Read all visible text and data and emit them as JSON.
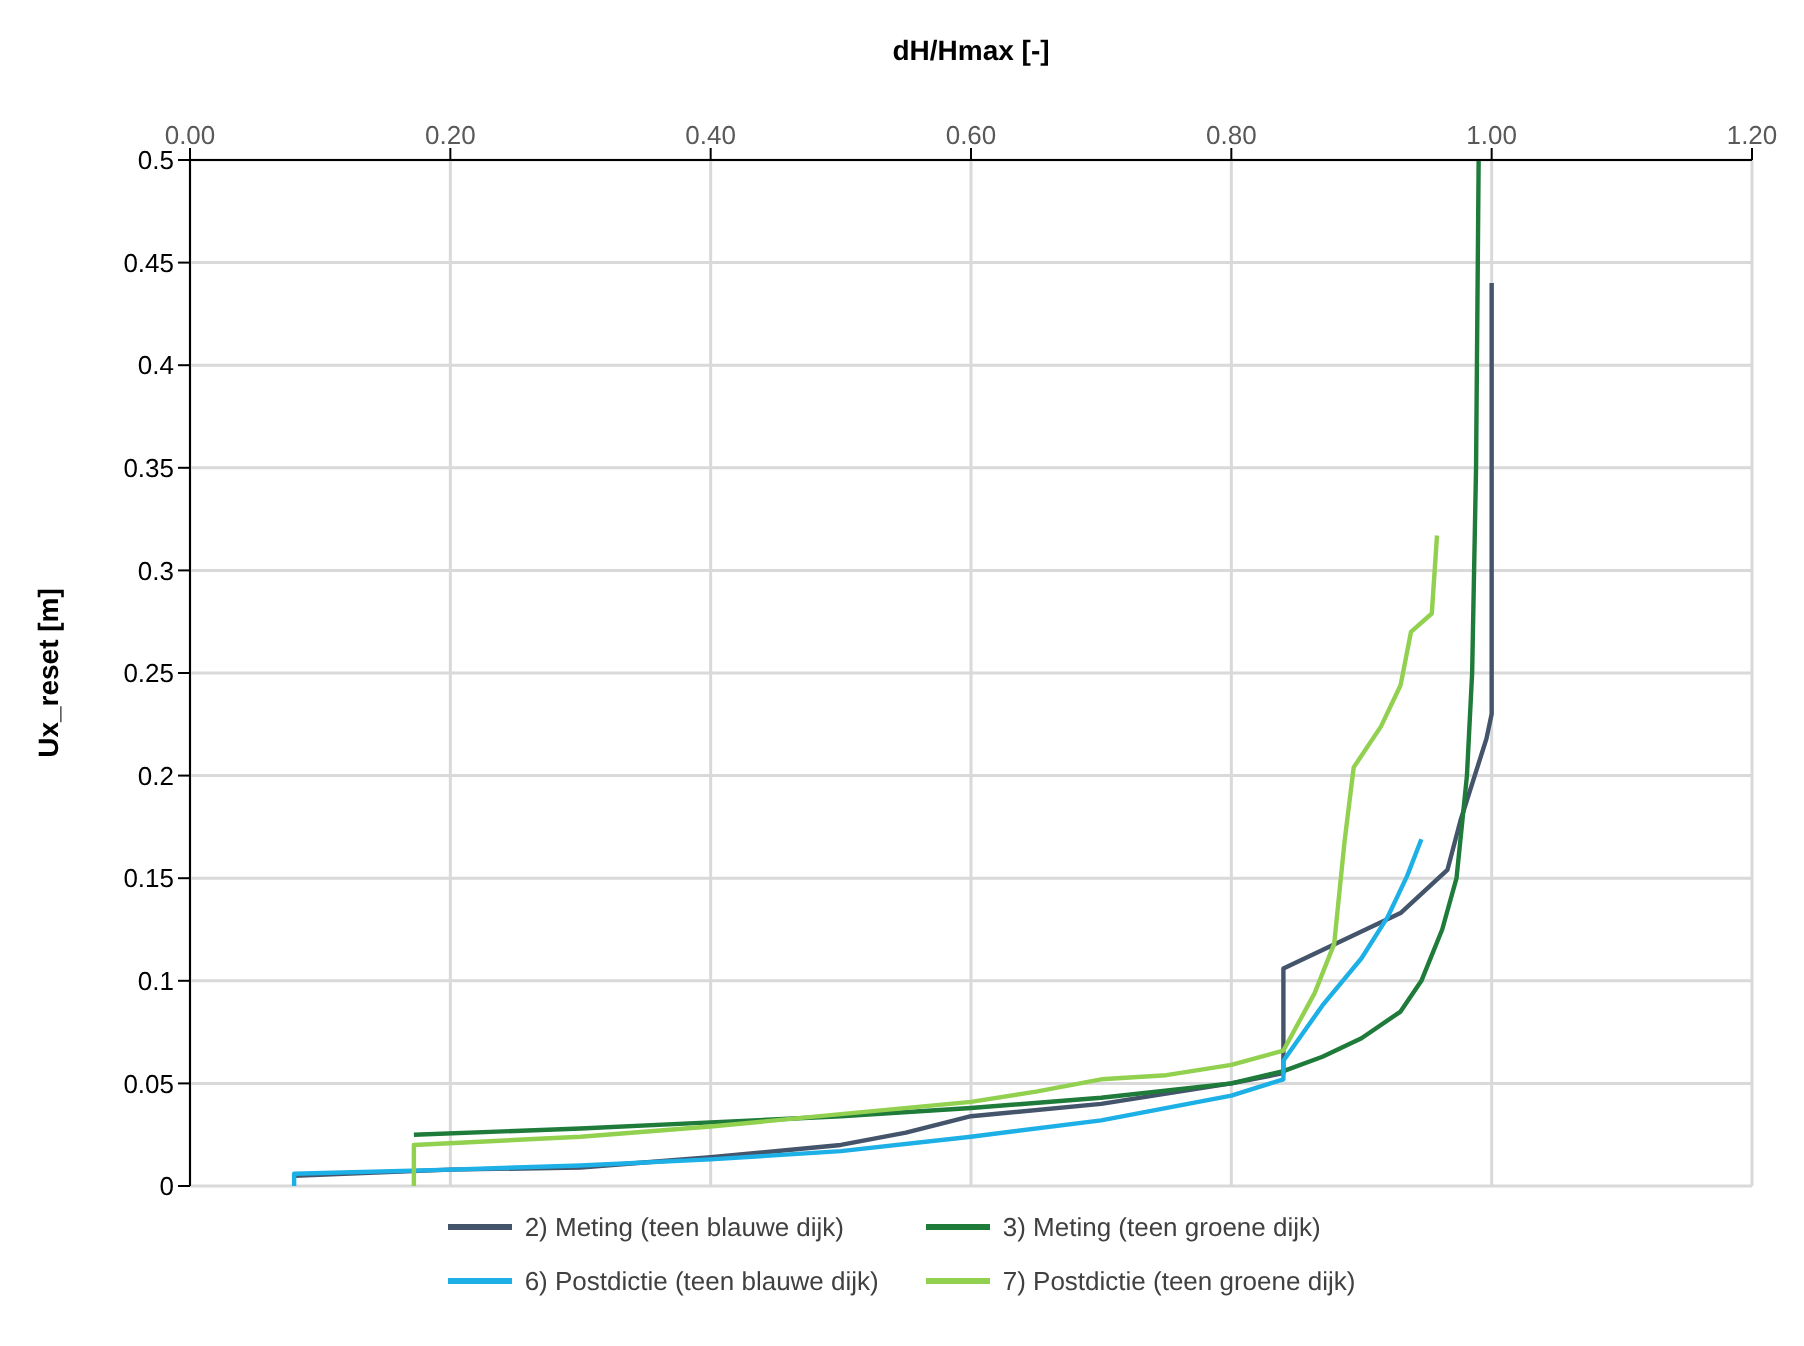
{
  "chart_data": {
    "type": "line",
    "xlabel": "dH/Hmax [-]",
    "ylabel": "Ux_reset [m]",
    "xlim": [
      0,
      1.2
    ],
    "xticks": [
      {
        "value": 0,
        "label": "0.00"
      },
      {
        "value": 0.2,
        "label": "0.20"
      },
      {
        "value": 0.4,
        "label": "0.40"
      },
      {
        "value": 0.6,
        "label": "0.60"
      },
      {
        "value": 0.8,
        "label": "0.80"
      },
      {
        "value": 1,
        "label": "1.00"
      },
      {
        "value": 1.2,
        "label": "1.20"
      }
    ],
    "ylim": [
      0,
      0.5
    ],
    "yticks": [
      0,
      0.05,
      0.1,
      0.15,
      0.2,
      0.25,
      0.3,
      0.35,
      0.4,
      0.45,
      0.5
    ],
    "grid": true,
    "legend": "bottom",
    "marker": "none",
    "line_style": "solid",
    "series": [
      {
        "name": "2) Meting (teen blauwe dijk)",
        "color": "#44546a",
        "x": [
          0.08,
          0.2,
          0.3,
          0.4,
          0.5,
          0.55,
          0.6,
          0.7,
          0.8,
          0.84,
          0.84,
          0.9,
          0.93,
          0.966,
          0.976,
          0.996,
          1.0,
          1.0
        ],
        "values": [
          0.005,
          0.008,
          0.009,
          0.014,
          0.02,
          0.026,
          0.034,
          0.04,
          0.05,
          0.055,
          0.106,
          0.124,
          0.133,
          0.154,
          0.178,
          0.218,
          0.23,
          0.44
        ]
      },
      {
        "name": "3) Meting (teen groene dijk)",
        "color": "#1e7b3a",
        "x": [
          0.172,
          0.3,
          0.4,
          0.5,
          0.6,
          0.7,
          0.8,
          0.84,
          0.87,
          0.9,
          0.93,
          0.946,
          0.962,
          0.973,
          0.981,
          0.985,
          0.988,
          0.99
        ],
        "values": [
          0.025,
          0.028,
          0.031,
          0.034,
          0.038,
          0.043,
          0.05,
          0.056,
          0.063,
          0.072,
          0.085,
          0.1,
          0.125,
          0.15,
          0.2,
          0.25,
          0.35,
          0.5
        ]
      },
      {
        "name": "6) Postdictie (teen blauwe dijk)",
        "color": "#1cb0e6",
        "x": [
          0.08,
          0.08,
          0.2,
          0.3,
          0.4,
          0.5,
          0.6,
          0.7,
          0.8,
          0.84,
          0.84,
          0.87,
          0.9,
          0.92,
          0.935,
          0.946
        ],
        "values": [
          0,
          0.006,
          0.008,
          0.01,
          0.013,
          0.017,
          0.024,
          0.032,
          0.044,
          0.052,
          0.061,
          0.088,
          0.111,
          0.131,
          0.151,
          0.169
        ]
      },
      {
        "name": "7) Postdictie (teen groene dijk)",
        "color": "#92d050",
        "x": [
          0.172,
          0.172,
          0.3,
          0.4,
          0.5,
          0.6,
          0.65,
          0.7,
          0.75,
          0.8,
          0.84,
          0.864,
          0.879,
          0.887,
          0.894,
          0.915,
          0.93,
          0.938,
          0.954,
          0.958
        ],
        "values": [
          0,
          0.02,
          0.024,
          0.029,
          0.035,
          0.041,
          0.046,
          0.052,
          0.054,
          0.059,
          0.066,
          0.094,
          0.118,
          0.168,
          0.204,
          0.224,
          0.244,
          0.27,
          0.279,
          0.317
        ]
      }
    ]
  }
}
